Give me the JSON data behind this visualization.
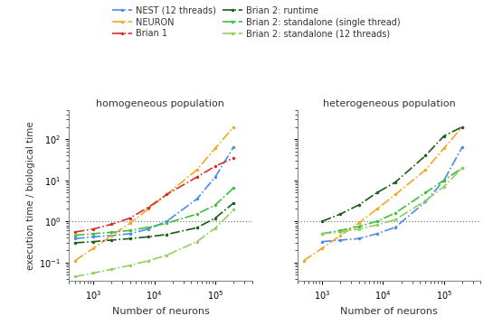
{
  "title_left": "homogeneous population",
  "title_right": "heterogeneous population",
  "xlabel": "Number of neurons",
  "ylabel": "execution time / biological time",
  "homogeneous": {
    "NEST": {
      "x": [
        500,
        1000,
        2000,
        4000,
        8000,
        16000,
        50000,
        100000,
        200000
      ],
      "y": [
        0.38,
        0.42,
        0.45,
        0.5,
        0.65,
        1.0,
        3.5,
        12,
        65
      ]
    },
    "NEURON": {
      "x": [
        500,
        1000,
        2000,
        4000,
        8000,
        16000,
        50000,
        100000,
        200000
      ],
      "y": [
        0.11,
        0.22,
        0.45,
        0.9,
        2.0,
        4.5,
        18,
        60,
        200
      ]
    },
    "Brian1": {
      "x": [
        500,
        1000,
        2000,
        4000,
        8000,
        16000,
        50000,
        100000,
        200000
      ],
      "y": [
        0.55,
        0.65,
        0.85,
        1.2,
        2.2,
        4.5,
        12,
        22,
        35
      ]
    },
    "Brian2_runtime": {
      "x": [
        500,
        1000,
        2000,
        4000,
        8000,
        16000,
        50000,
        100000,
        200000
      ],
      "y": [
        0.3,
        0.32,
        0.35,
        0.38,
        0.42,
        0.48,
        0.7,
        1.2,
        2.8
      ]
    },
    "Brian2_standalone_single": {
      "x": [
        500,
        1000,
        2000,
        4000,
        8000,
        16000,
        50000,
        100000,
        200000
      ],
      "y": [
        0.46,
        0.5,
        0.54,
        0.6,
        0.72,
        0.9,
        1.5,
        2.5,
        6.5
      ]
    },
    "Brian2_standalone_12": {
      "x": [
        500,
        1000,
        2000,
        4000,
        8000,
        16000,
        50000,
        100000,
        200000
      ],
      "y": [
        0.045,
        0.055,
        0.068,
        0.085,
        0.11,
        0.15,
        0.32,
        0.68,
        1.9
      ]
    }
  },
  "heterogeneous": {
    "NEST": {
      "x": [
        1000,
        2000,
        4000,
        8000,
        16000,
        50000,
        100000,
        200000
      ],
      "y": [
        0.32,
        0.35,
        0.38,
        0.5,
        0.72,
        3.0,
        10,
        65
      ]
    },
    "NEURON": {
      "x": [
        500,
        1000,
        2000,
        4000,
        8000,
        16000,
        50000,
        100000,
        200000
      ],
      "y": [
        0.11,
        0.22,
        0.45,
        0.9,
        2.0,
        4.5,
        18,
        60,
        200
      ]
    },
    "Brian1": {
      "x": [],
      "y": []
    },
    "Brian2_runtime": {
      "x": [
        1000,
        2000,
        4000,
        8000,
        16000,
        50000,
        100000,
        200000
      ],
      "y": [
        1.0,
        1.5,
        2.5,
        5.0,
        9.0,
        40,
        120,
        200
      ]
    },
    "Brian2_standalone_single": {
      "x": [
        1000,
        2000,
        4000,
        8000,
        16000,
        50000,
        100000,
        200000
      ],
      "y": [
        0.5,
        0.6,
        0.75,
        1.0,
        1.6,
        5.0,
        10,
        20
      ]
    },
    "Brian2_standalone_12": {
      "x": [
        1000,
        2000,
        4000,
        8000,
        16000,
        50000,
        100000,
        200000
      ],
      "y": [
        0.5,
        0.55,
        0.65,
        0.82,
        1.1,
        3.2,
        7.0,
        20
      ]
    }
  },
  "xlim": [
    400,
    400000
  ],
  "ylim": [
    0.035,
    500
  ],
  "hline_y": 1.0,
  "colors": {
    "NEST": "#4C8BE8",
    "NEURON": "#F5A623",
    "Brian1": "#D0312D",
    "Brian2_runtime": "#1A5C1A",
    "Brian2_standalone_single": "#3DBE3D",
    "Brian2_standalone_12": "#90D060"
  },
  "labels": {
    "NEST": "NEST (12 threads)",
    "NEURON": "NEURON",
    "Brian1": "Brian 1",
    "Brian2_runtime": "Brian 2: runtime",
    "Brian2_standalone_single": "Brian 2: standalone (single thread)",
    "Brian2_standalone_12": "Brian 2: standalone (12 threads)"
  }
}
